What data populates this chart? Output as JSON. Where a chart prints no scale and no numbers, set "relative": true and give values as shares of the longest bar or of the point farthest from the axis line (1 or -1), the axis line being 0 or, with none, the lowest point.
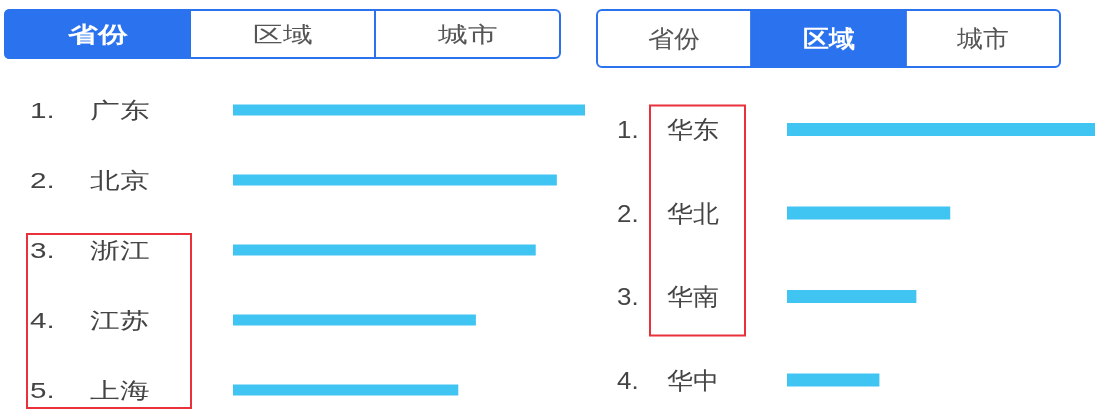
{
  "chart_data": [
    {
      "type": "bar",
      "orientation": "horizontal",
      "relative": true,
      "title": "省份",
      "annotations": [
        null,
        "区域",
        "城市"
      ],
      "categories": [
        "1. 广东",
        "2. 北京",
        "3. 浙江",
        "4. 江苏",
        "5. 上海"
      ],
      "values": [
        1,
        0.92,
        0.86,
        0.69,
        0.64
      ],
      "color": "#40c4f2"
    },
    {
      "type": "bar",
      "orientation": "horizontal",
      "relative": true,
      "title": "区域",
      "annotations": [
        "省份",
        null,
        "城市"
      ],
      "categories": [
        "1. 华东",
        "2. 华北",
        "3. 华南",
        "4. 华中"
      ],
      "values": [
        1,
        0.53,
        0.42,
        0.3
      ],
      "color": "#40c4f2"
    }
  ]
}
